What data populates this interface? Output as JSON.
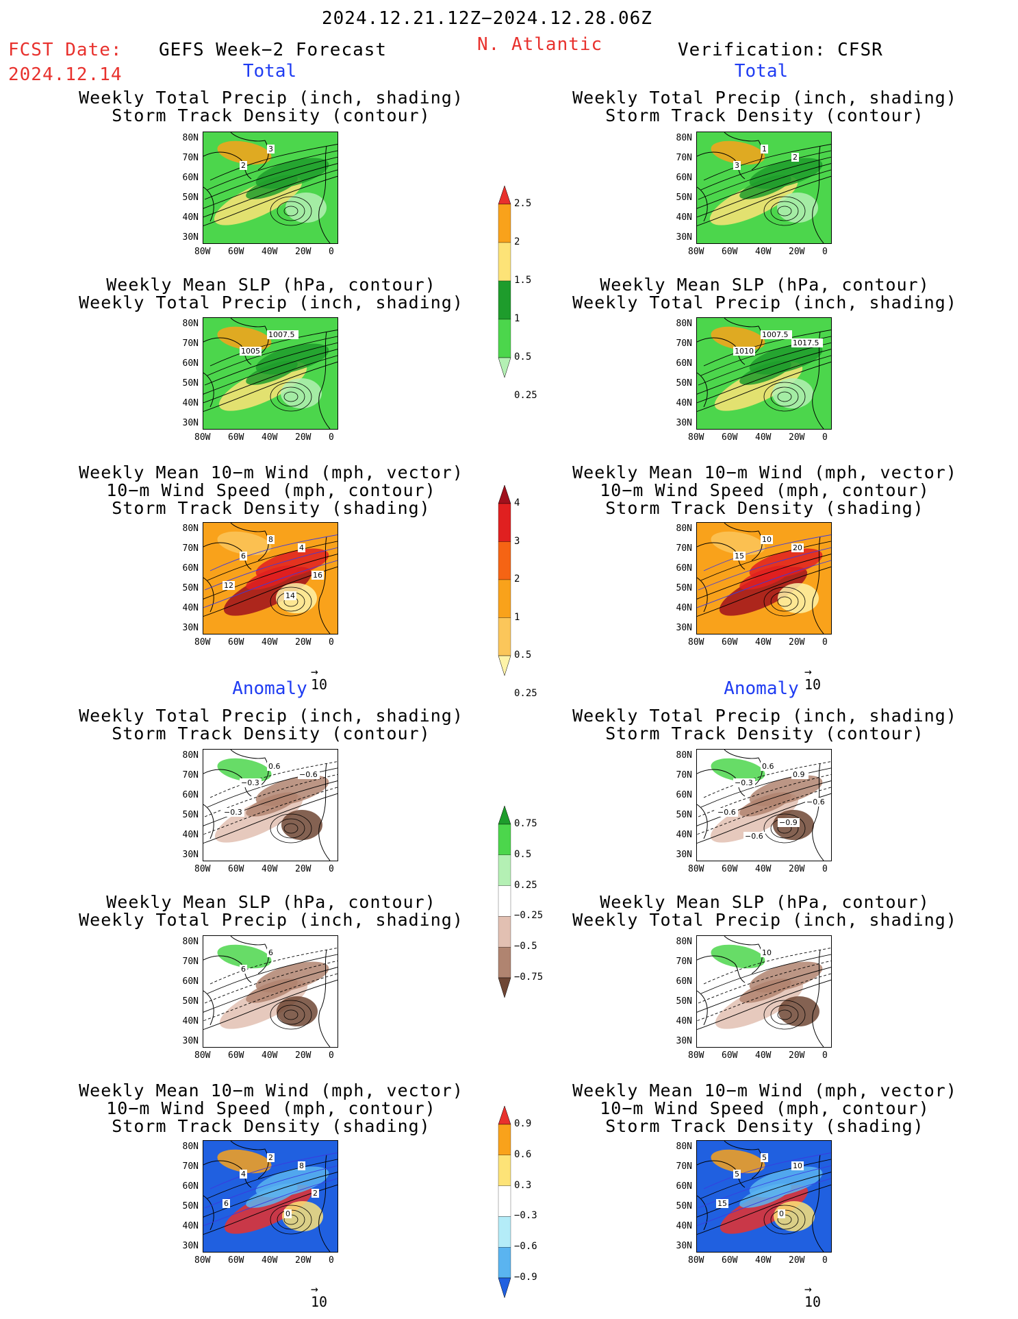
{
  "header": {
    "date_range": "2024.12.21.12Z−2024.12.28.06Z",
    "fcst_label": "FCST Date:",
    "fcst_date": "2024.12.14",
    "left_title": "GEFS Week−2 Forecast",
    "region": "N. Atlantic",
    "right_title": "Verification: CFSR"
  },
  "sections": {
    "total": "Total",
    "anomaly": "Anomaly"
  },
  "panel_titles": {
    "precip_storm": [
      "Weekly Total Precip (inch, shading)",
      "Storm Track Density (contour)"
    ],
    "slp_precip": [
      "Weekly Mean SLP (hPa, contour)",
      "Weekly Total Precip (inch, shading)"
    ],
    "wind_storm": [
      "Weekly Mean 10−m Wind (mph, vector)",
      "10−m Wind Speed (mph, contour)",
      "Storm Track Density (shading)"
    ]
  },
  "axes": {
    "lat_ticks": [
      "80N",
      "70N",
      "60N",
      "50N",
      "40N",
      "30N"
    ],
    "lon_ticks": [
      "80W",
      "60W",
      "40W",
      "20W",
      "0"
    ]
  },
  "vector_ref": "10",
  "colorbars": {
    "precip_total": {
      "labels": [
        "2.5",
        "2",
        "1.5",
        "1",
        "0.5",
        "0.25"
      ],
      "colors": [
        "#e8312d",
        "#f9a21b",
        "#fde377",
        "#1e9c2c",
        "#4cd64c",
        "#b4f0b4"
      ]
    },
    "storm_total": {
      "labels": [
        "4",
        "3",
        "2",
        "1",
        "0.5",
        "0.25"
      ],
      "colors": [
        "#a0101c",
        "#e02020",
        "#f56414",
        "#f9a21b",
        "#fbc65a",
        "#fef3a8"
      ]
    },
    "precip_anom": {
      "labels": [
        "0.75",
        "0.5",
        "0.25",
        "−0.25",
        "−0.5",
        "−0.75"
      ],
      "colors": [
        "#1e9c2c",
        "#4cd64c",
        "#b4f0b4",
        "#ffffff",
        "#e2c0b2",
        "#b08470",
        "#6e4634"
      ]
    },
    "storm_anom": {
      "labels": [
        "0.9",
        "0.6",
        "0.3",
        "−0.3",
        "−0.6",
        "−0.9"
      ],
      "colors": [
        "#e8312d",
        "#f9a21b",
        "#fde377",
        "#ffffff",
        "#b4ecf8",
        "#5ab4f0",
        "#2060e0"
      ]
    }
  },
  "contour_labels": {
    "p1_left": [
      "3",
      "2"
    ],
    "p1_right": [
      "1",
      "3",
      "2"
    ],
    "p2_left": [
      "1007.5",
      "1005"
    ],
    "p2_right": [
      "1007.5",
      "1010",
      "1017.5"
    ],
    "p3_left": [
      "8",
      "6",
      "4",
      "12",
      "14",
      "16"
    ],
    "p3_right": [
      "10",
      "15",
      "20"
    ],
    "p4_left": [
      "0.6",
      "−0.3",
      "−0.6",
      "−0.3"
    ],
    "p4_right": [
      "0.6",
      "−0.3",
      "0.9",
      "−0.6",
      "−0.9",
      "−0.6",
      "−0.6"
    ],
    "p5_left": [
      "6",
      "6"
    ],
    "p5_right": [
      "10"
    ],
    "p6_left": [
      "2",
      "4",
      "8",
      "6",
      "0",
      "2"
    ],
    "p6_right": [
      "5",
      "5",
      "10",
      "15",
      "0"
    ]
  }
}
